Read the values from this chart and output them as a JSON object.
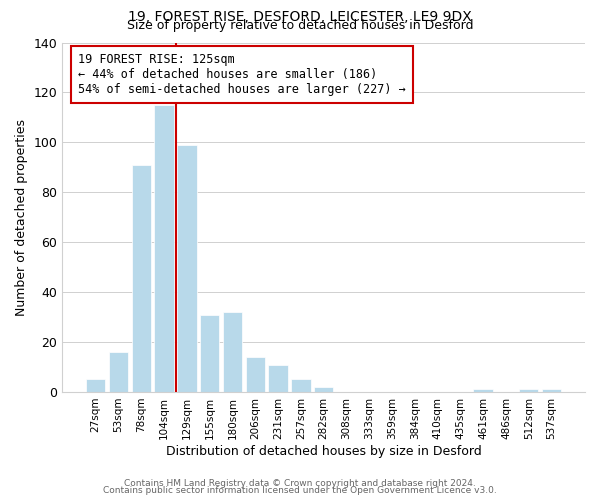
{
  "title1": "19, FOREST RISE, DESFORD, LEICESTER, LE9 9DX",
  "title2": "Size of property relative to detached houses in Desford",
  "xlabel": "Distribution of detached houses by size in Desford",
  "ylabel": "Number of detached properties",
  "footer1": "Contains HM Land Registry data © Crown copyright and database right 2024.",
  "footer2": "Contains public sector information licensed under the Open Government Licence v3.0.",
  "bar_labels": [
    "27sqm",
    "53sqm",
    "78sqm",
    "104sqm",
    "129sqm",
    "155sqm",
    "180sqm",
    "206sqm",
    "231sqm",
    "257sqm",
    "282sqm",
    "308sqm",
    "333sqm",
    "359sqm",
    "384sqm",
    "410sqm",
    "435sqm",
    "461sqm",
    "486sqm",
    "512sqm",
    "537sqm"
  ],
  "bar_values": [
    5,
    16,
    91,
    115,
    99,
    31,
    32,
    14,
    11,
    5,
    2,
    0,
    0,
    0,
    0,
    0,
    0,
    1,
    0,
    1,
    1
  ],
  "bar_color": "#b8d9ea",
  "bar_edge_color": "#b8d9ea",
  "vline_color": "#cc0000",
  "annotation_title": "19 FOREST RISE: 125sqm",
  "annotation_line1": "← 44% of detached houses are smaller (186)",
  "annotation_line2": "54% of semi-detached houses are larger (227) →",
  "annotation_box_edgecolor": "#cc0000",
  "ylim": [
    0,
    140
  ],
  "yticks": [
    0,
    20,
    40,
    60,
    80,
    100,
    120,
    140
  ],
  "background_color": "#ffffff",
  "grid_color": "#d0d0d0"
}
